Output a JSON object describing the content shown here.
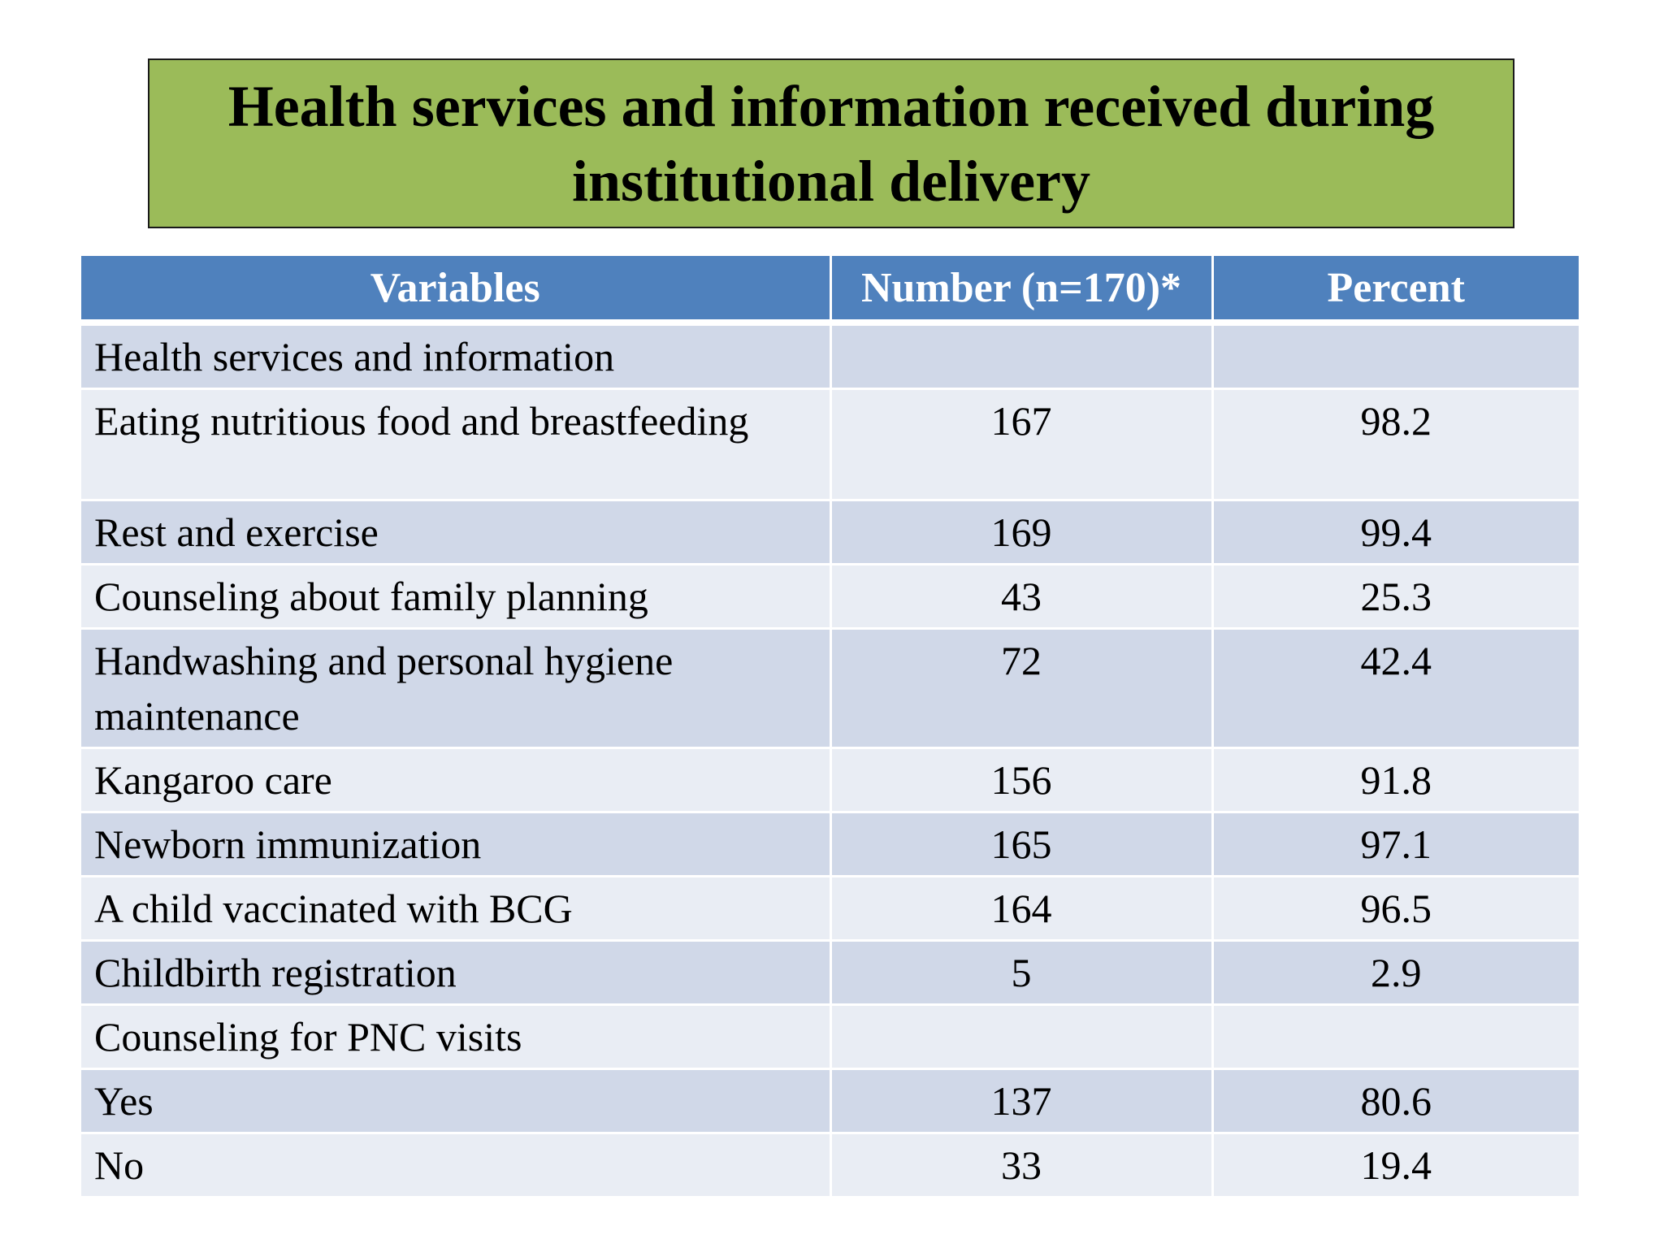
{
  "title": "Health services and information received during institutional delivery",
  "table": {
    "headers": [
      "Variables",
      "Number (n=170)*",
      "Percent"
    ],
    "rows": [
      {
        "variable": "Health services and information",
        "number": "",
        "percent": "",
        "section": true
      },
      {
        "variable": "Eating nutritious food and breastfeeding",
        "number": "167",
        "percent": "98.2"
      },
      {
        "variable": "Rest and exercise",
        "number": "169",
        "percent": "99.4"
      },
      {
        "variable": "Counseling about family planning",
        "number": "43",
        "percent": "25.3"
      },
      {
        "variable": "Handwashing and personal hygiene maintenance",
        "number": "72",
        "percent": "42.4"
      },
      {
        "variable": "Kangaroo care",
        "number": "156",
        "percent": "91.8"
      },
      {
        "variable": "Newborn immunization",
        "number": "165",
        "percent": "97.1"
      },
      {
        "variable": "A child vaccinated with BCG",
        "number": "164",
        "percent": "96.5"
      },
      {
        "variable": "Childbirth registration",
        "number": "5",
        "percent": "2.9"
      },
      {
        "variable": "Counseling for PNC visits",
        "number": "",
        "percent": "",
        "section": true
      },
      {
        "variable": "Yes",
        "number": "137",
        "percent": "80.6"
      },
      {
        "variable": "No",
        "number": "33",
        "percent": "19.4"
      }
    ]
  },
  "colors": {
    "title_background": "#9bbb59",
    "header_background": "#4f81bd",
    "row_dark": "#d0d8e8",
    "row_light": "#e9edf4"
  }
}
